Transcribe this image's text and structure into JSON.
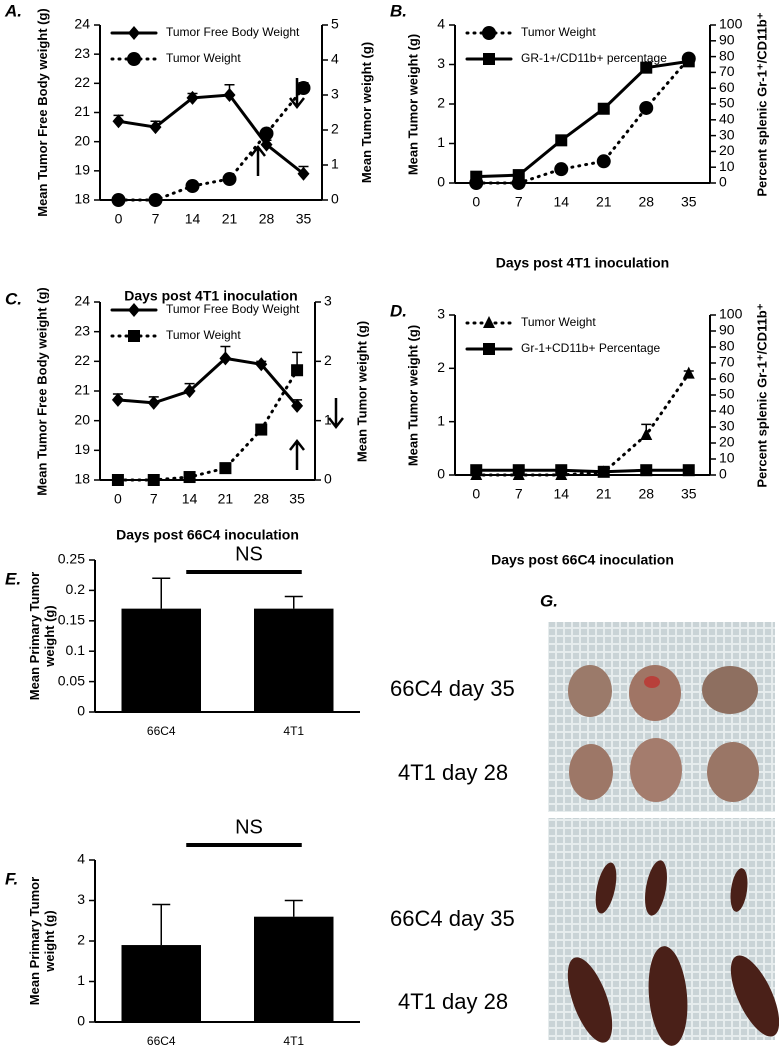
{
  "chart_data": [
    {
      "type": "line",
      "panel_label": "A.",
      "xlabel": "Days post 4T1 inoculation",
      "ylabel": "Mean Tumor Free Body weight (g)",
      "y2label": "Mean Tumor weight (g)",
      "categories": [
        "0",
        "7",
        "14",
        "21",
        "28",
        "35"
      ],
      "ylim": [
        18,
        24
      ],
      "yticks": [
        18,
        19,
        20,
        21,
        22,
        23,
        24
      ],
      "y2lim": [
        0,
        5
      ],
      "y2ticks": [
        0,
        1,
        2,
        3,
        4,
        5
      ],
      "legend": "upper left",
      "series": [
        {
          "name": "Tumor Free Body Weight",
          "color": "#000000",
          "marker": "diamond",
          "line": "solid",
          "values": [
            20.7,
            20.5,
            21.5,
            21.6,
            19.9,
            18.9
          ],
          "errors": [
            0.2,
            0.2,
            0.15,
            0.35,
            0.15,
            0.25
          ]
        },
        {
          "name": "Tumor Weight",
          "color": "#000000",
          "marker": "circle",
          "line": "dotted",
          "axis": "y2",
          "values": [
            0,
            0,
            0.4,
            0.6,
            1.9,
            3.2
          ],
          "errors": [
            0,
            0,
            0.05,
            0.05,
            0.1,
            0.15
          ]
        }
      ]
    },
    {
      "type": "line",
      "panel_label": "B.",
      "xlabel": "Days post 4T1 inoculation",
      "ylabel": "Mean Tumor weight (g)",
      "y2label": "Percent splenic Gr-1⁺/CD11b⁺",
      "categories": [
        "0",
        "7",
        "14",
        "21",
        "28",
        "35"
      ],
      "ylim": [
        0,
        4
      ],
      "yticks": [
        0,
        1,
        2,
        3,
        4
      ],
      "y2lim": [
        0,
        100
      ],
      "y2ticks": [
        0,
        10,
        20,
        30,
        40,
        50,
        60,
        70,
        80,
        90,
        100
      ],
      "legend": "upper left",
      "series": [
        {
          "name": "Tumor Weight",
          "color": "#000000",
          "marker": "circle",
          "line": "dotted",
          "values": [
            0,
            0,
            0.35,
            0.55,
            1.9,
            3.15
          ],
          "errors": [
            0,
            0,
            0.05,
            0.05,
            0.1,
            0.1
          ]
        },
        {
          "name": "GR-1+/CD11b+ percentage",
          "color": "#000000",
          "marker": "square",
          "line": "solid",
          "axis": "y2",
          "values": [
            4,
            5,
            27,
            47,
            73,
            77
          ]
        }
      ]
    },
    {
      "type": "line",
      "panel_label": "C.",
      "xlabel": "Days post 66C4 inoculation",
      "ylabel": "Mean Tumor Free Body weight (g)",
      "y2label": "Mean Tumor weight (g)",
      "categories": [
        "0",
        "7",
        "14",
        "21",
        "28",
        "35"
      ],
      "ylim": [
        18,
        24
      ],
      "yticks": [
        18,
        19,
        20,
        21,
        22,
        23,
        24
      ],
      "y2lim": [
        0,
        3
      ],
      "y2ticks": [
        0,
        1,
        2,
        3
      ],
      "legend": "upper left",
      "series": [
        {
          "name": "Tumor Free Body Weight",
          "color": "#000000",
          "marker": "diamond",
          "line": "solid",
          "values": [
            20.7,
            20.6,
            21.0,
            22.1,
            21.9,
            20.5
          ],
          "errors": [
            0.2,
            0.2,
            0.25,
            0.4,
            0.1,
            0.2
          ]
        },
        {
          "name": "Tumor Weight",
          "color": "#000000",
          "marker": "square",
          "line": "dotted",
          "axis": "y2",
          "values": [
            0,
            0,
            0.05,
            0.2,
            0.85,
            1.85
          ],
          "errors": [
            0,
            0,
            0.03,
            0.05,
            0.05,
            0.3
          ]
        }
      ]
    },
    {
      "type": "line",
      "panel_label": "D.",
      "xlabel": "Days post 66C4 inoculation",
      "ylabel": "Mean Tumor weight (g)",
      "y2label": "Percent splenic Gr-1⁺/CD11b⁺",
      "categories": [
        "0",
        "7",
        "14",
        "21",
        "28",
        "35"
      ],
      "ylim": [
        0,
        3
      ],
      "yticks": [
        0,
        1,
        2,
        3
      ],
      "y2lim": [
        0,
        100
      ],
      "y2ticks": [
        0,
        10,
        20,
        30,
        40,
        50,
        60,
        70,
        80,
        90,
        100
      ],
      "legend": "upper left",
      "series": [
        {
          "name": "Tumor Weight",
          "color": "#000000",
          "marker": "triangle",
          "line": "dotted",
          "values": [
            0,
            0,
            0,
            0.05,
            0.75,
            1.9
          ],
          "errors": [
            0,
            0,
            0,
            0,
            0.2,
            0.05
          ]
        },
        {
          "name": "Gr-1+CD11b+ Percentage",
          "color": "#000000",
          "marker": "square",
          "line": "solid",
          "axis": "y2",
          "values": [
            3,
            3,
            3,
            2,
            3,
            3
          ]
        }
      ]
    },
    {
      "type": "bar",
      "panel_label": "E.",
      "ylabel": "Mean Primary Tumor weight (g)",
      "categories": [
        "66C4",
        "4T1"
      ],
      "values": [
        0.17,
        0.17
      ],
      "errors": [
        0.05,
        0.02
      ],
      "color": "#000000",
      "ylim": [
        0,
        0.25
      ],
      "yticks": [
        0,
        0.05,
        0.1,
        0.15,
        0.2,
        0.25
      ],
      "annotation": "NS"
    },
    {
      "type": "bar",
      "panel_label": "F.",
      "ylabel": "Mean Primary Tumor weight (g)",
      "categories": [
        "66C4",
        "4T1"
      ],
      "values": [
        1.9,
        2.6
      ],
      "errors": [
        1.0,
        0.4
      ],
      "color": "#000000",
      "ylim": [
        0,
        4
      ],
      "yticks": [
        0,
        1,
        2,
        3,
        4
      ],
      "annotation": "NS"
    }
  ],
  "photo_panel": {
    "panel_label": "G.",
    "labels": [
      "66C4 day 35",
      "4T1 day 28",
      "66C4 day 35",
      "4T1 day 28"
    ]
  }
}
